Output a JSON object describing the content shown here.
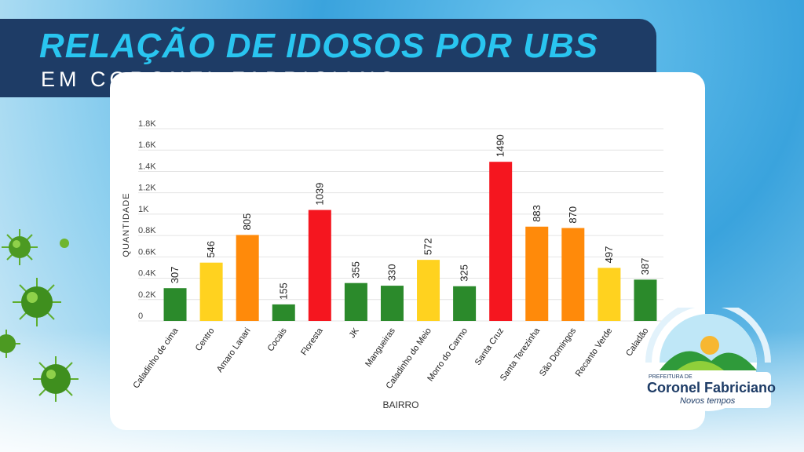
{
  "header": {
    "title": "RELAÇÃO DE IDOSOS POR UBS",
    "subtitle": "EM CORONEL FABRICIANO"
  },
  "logo": {
    "top_text": "PREFEITURA DE",
    "name": "Coronel Fabriciano",
    "slogan": "Novos tempos"
  },
  "colors": {
    "green": "#2b8a2b",
    "yellow": "#ffd21f",
    "orange": "#ff8a0a",
    "red": "#f5161f",
    "header_bg": "#1e3c66",
    "title": "#29c5f0"
  },
  "chart_data": {
    "type": "bar",
    "xlabel": "BAIRRO",
    "ylabel": "QUANTIDADE",
    "ylim": [
      0,
      1800
    ],
    "yticks": [
      "0",
      "0.2K",
      "0.4K",
      "0.6K",
      "0.8K",
      "1K",
      "1.2K",
      "1.4K",
      "1.6K",
      "1.8K"
    ],
    "grid": true,
    "categories": [
      "Caladinho de cima",
      "Centro",
      "Amaro Lanari",
      "Cocais",
      "Floresta",
      "JK",
      "Mangueiras",
      "Caladinho do Meio",
      "Morro do Carmo",
      "Santa Cruz",
      "Santa Terezinha",
      "São Domingos",
      "Recanto Verde",
      "Caladão"
    ],
    "values": [
      307,
      546,
      805,
      155,
      1039,
      355,
      330,
      572,
      325,
      1490,
      883,
      870,
      497,
      387
    ],
    "bar_colors": [
      "green",
      "yellow",
      "orange",
      "green",
      "red",
      "green",
      "green",
      "yellow",
      "green",
      "red",
      "orange",
      "orange",
      "yellow",
      "green"
    ]
  }
}
